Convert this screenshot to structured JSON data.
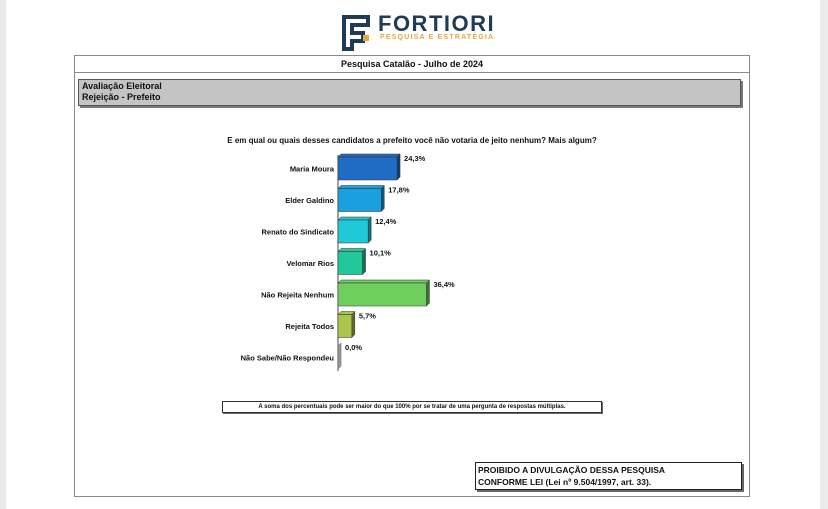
{
  "logo": {
    "wordmark": "FORTIORI",
    "tagline": "PESQUISA E ESTRATÉGIA",
    "colors": {
      "navy": "#1f3b57",
      "gold": "#e8a83a"
    }
  },
  "report": {
    "title": "Pesquisa Catalão - Julho de 2024",
    "header_line1": "Avaliação Eleitoral",
    "header_line2": "Rejeição - Prefeito",
    "question": "E em qual ou quais desses candidatos a prefeito você não votaria de jeito nenhum? Mais algum?",
    "note": "A soma dos percentuais pode ser maior do que 100% por se tratar de uma pergunta de respostas múltiplas.",
    "legal_line1": "PROIBIDO A DIVULGAÇÃO DESSA PESQUISA",
    "legal_line2": "CONFORME LEI  (Lei nº 9.504/1997, art. 33)."
  },
  "chart_data": {
    "type": "bar",
    "orientation": "horizontal",
    "categories": [
      "Maria Moura",
      "Elder Galdino",
      "Renato do Sindicato",
      "Velomar Rios",
      "Não Rejeita Nenhum",
      "Rejeita Todos",
      "Não Sabe/Não Respondeu"
    ],
    "values": [
      24.3,
      17.8,
      12.4,
      10.1,
      36.4,
      5.7,
      0.0
    ],
    "value_labels": [
      "24,3%",
      "17,8%",
      "12,4%",
      "10,1%",
      "36,4%",
      "5,7%",
      "0,0%"
    ],
    "colors": [
      "#1f6cc4",
      "#1aa0e0",
      "#1fc9d8",
      "#22c89a",
      "#6fcf5e",
      "#a9c64a",
      "#8a8a8a"
    ],
    "title": "",
    "xlabel": "",
    "ylabel": "",
    "xlim": [
      0,
      40
    ],
    "grid": false,
    "legend": "none",
    "style": "3d"
  }
}
